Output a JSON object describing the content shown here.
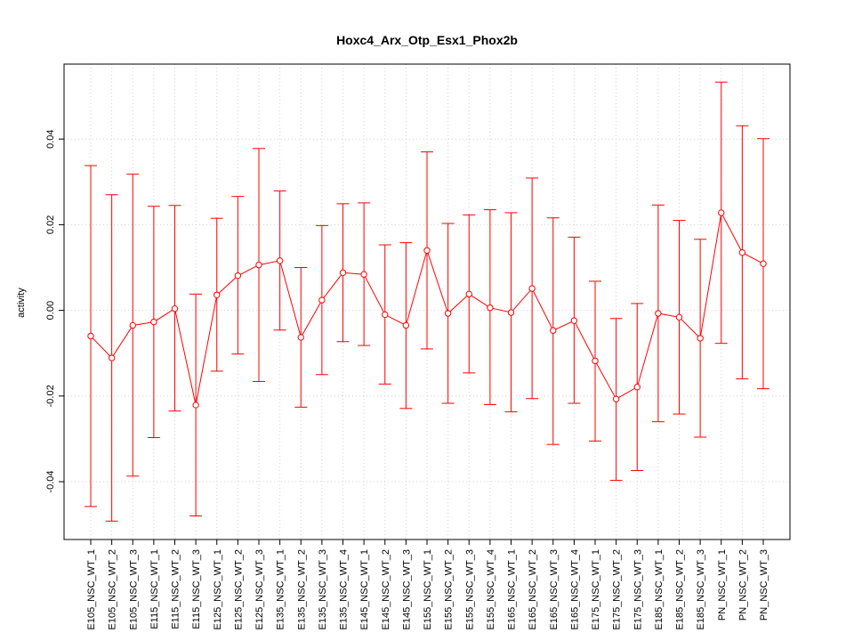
{
  "chart_data": {
    "type": "line",
    "title": "Hoxc4_Arx_Otp_Esx1_Phox2b",
    "xlabel": "",
    "ylabel": "activity",
    "ylim": [
      -0.0535,
      0.0575
    ],
    "yticks": [
      -0.04,
      -0.02,
      0.0,
      0.02,
      0.04
    ],
    "ytick_labels": [
      "-0.04",
      "-0.02",
      "0.00",
      "0.02",
      "0.04"
    ],
    "grid": true,
    "color": "#ff0000",
    "categories": [
      "E105_NSC_WT_1",
      "E105_NSC_WT_2",
      "E105_NSC_WT_3",
      "E115_NSC_WT_1",
      "E115_NSC_WT_2",
      "E115_NSC_WT_3",
      "E125_NSC_WT_1",
      "E125_NSC_WT_2",
      "E125_NSC_WT_3",
      "E135_NSC_WT_1",
      "E135_NSC_WT_2",
      "E135_NSC_WT_3",
      "E135_NSC_WT_4",
      "E145_NSC_WT_1",
      "E145_NSC_WT_2",
      "E145_NSC_WT_3",
      "E155_NSC_WT_1",
      "E155_NSC_WT_2",
      "E155_NSC_WT_3",
      "E155_NSC_WT_4",
      "E165_NSC_WT_1",
      "E165_NSC_WT_2",
      "E165_NSC_WT_3",
      "E165_NSC_WT_4",
      "E175_NSC_WT_1",
      "E175_NSC_WT_2",
      "E175_NSC_WT_3",
      "E185_NSC_WT_1",
      "E185_NSC_WT_2",
      "E185_NSC_WT_3",
      "PN_NSC_WT_1",
      "PN_NSC_WT_2",
      "PN_NSC_WT_3"
    ],
    "series": [
      {
        "values": [
          -0.006,
          -0.0111,
          -0.0035,
          -0.0027,
          0.0004,
          -0.0221,
          0.0036,
          0.0081,
          0.0106,
          0.0116,
          -0.0063,
          0.0024,
          0.0088,
          0.0084,
          -0.001,
          -0.0035,
          0.014,
          -0.0007,
          0.0038,
          0.0006,
          -0.0005,
          0.0051,
          -0.0047,
          -0.0024,
          -0.0118,
          -0.0207,
          -0.0179,
          -0.0007,
          -0.0016,
          -0.0065,
          0.0228,
          0.0135,
          0.0109
        ],
        "upper": [
          0.0338,
          0.027,
          0.0318,
          0.0243,
          0.0245,
          0.0038,
          0.0215,
          0.0266,
          0.0378,
          0.0279,
          0.01,
          0.0198,
          0.0249,
          0.0251,
          0.0153,
          0.0158,
          0.037,
          0.0203,
          0.0223,
          0.0235,
          0.0228,
          0.0309,
          0.0216,
          0.0171,
          0.0068,
          -0.0019,
          0.0016,
          0.0246,
          0.021,
          0.0166,
          0.0533,
          0.0431,
          0.0401
        ],
        "lower": [
          -0.0458,
          -0.0492,
          -0.0387,
          -0.0297,
          -0.0235,
          -0.048,
          -0.0142,
          -0.0102,
          -0.0166,
          -0.0046,
          -0.0226,
          -0.015,
          -0.0073,
          -0.0082,
          -0.0172,
          -0.0229,
          -0.009,
          -0.0217,
          -0.0146,
          -0.022,
          -0.0237,
          -0.0206,
          -0.0313,
          -0.0217,
          -0.0305,
          -0.0397,
          -0.0374,
          -0.026,
          -0.0242,
          -0.0296,
          -0.0077,
          -0.016,
          -0.0183
        ]
      }
    ]
  }
}
